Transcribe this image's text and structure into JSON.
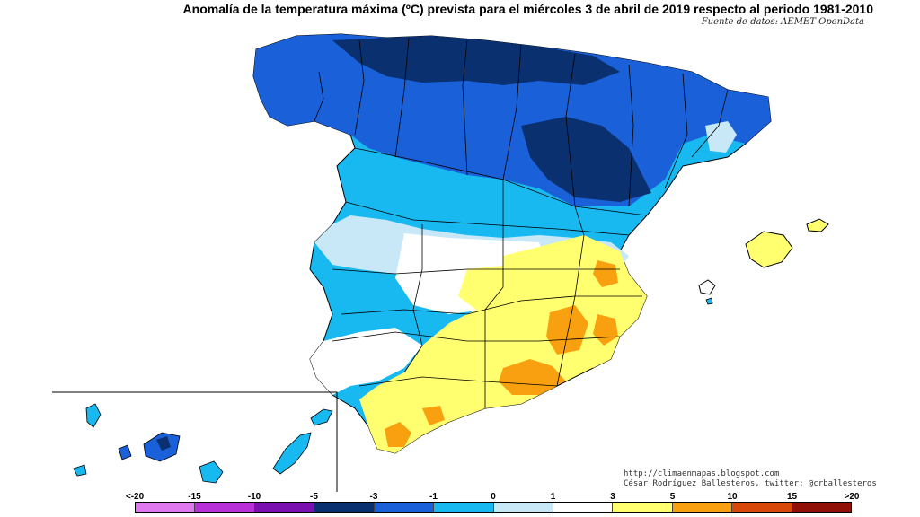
{
  "title": "Anomalía de la temperatura máxima (ºC) prevista para el miércoles 3 de abril de 2019 respecto al periodo 1981-2010",
  "source": "Fuente de datos: AEMET OpenData",
  "credits": {
    "line1": "http://climaenmapas.blogspot.com",
    "line2": "César Rodríguez Ballesteros, twitter: @crballesteros"
  },
  "legend": {
    "labels": [
      "<-20",
      "-15",
      "-10",
      "-5",
      "-3",
      "-1",
      "0",
      "1",
      "3",
      "5",
      "10",
      "15",
      ">20"
    ],
    "colors": [
      "#e078f0",
      "#b830d8",
      "#7a10b0",
      "#0a3070",
      "#1a60d8",
      "#18b8f0",
      "#c8e8f8",
      "#ffffff",
      "#ffff70",
      "#f8a010",
      "#d84808",
      "#901008",
      "#6a3808"
    ]
  },
  "palette": {
    "dark_navy": "#0a3070",
    "blue": "#1a60d8",
    "cyan": "#18b8f0",
    "light_blue": "#c8e8f8",
    "white": "#ffffff",
    "yellow": "#ffff70",
    "orange": "#f8a010"
  }
}
